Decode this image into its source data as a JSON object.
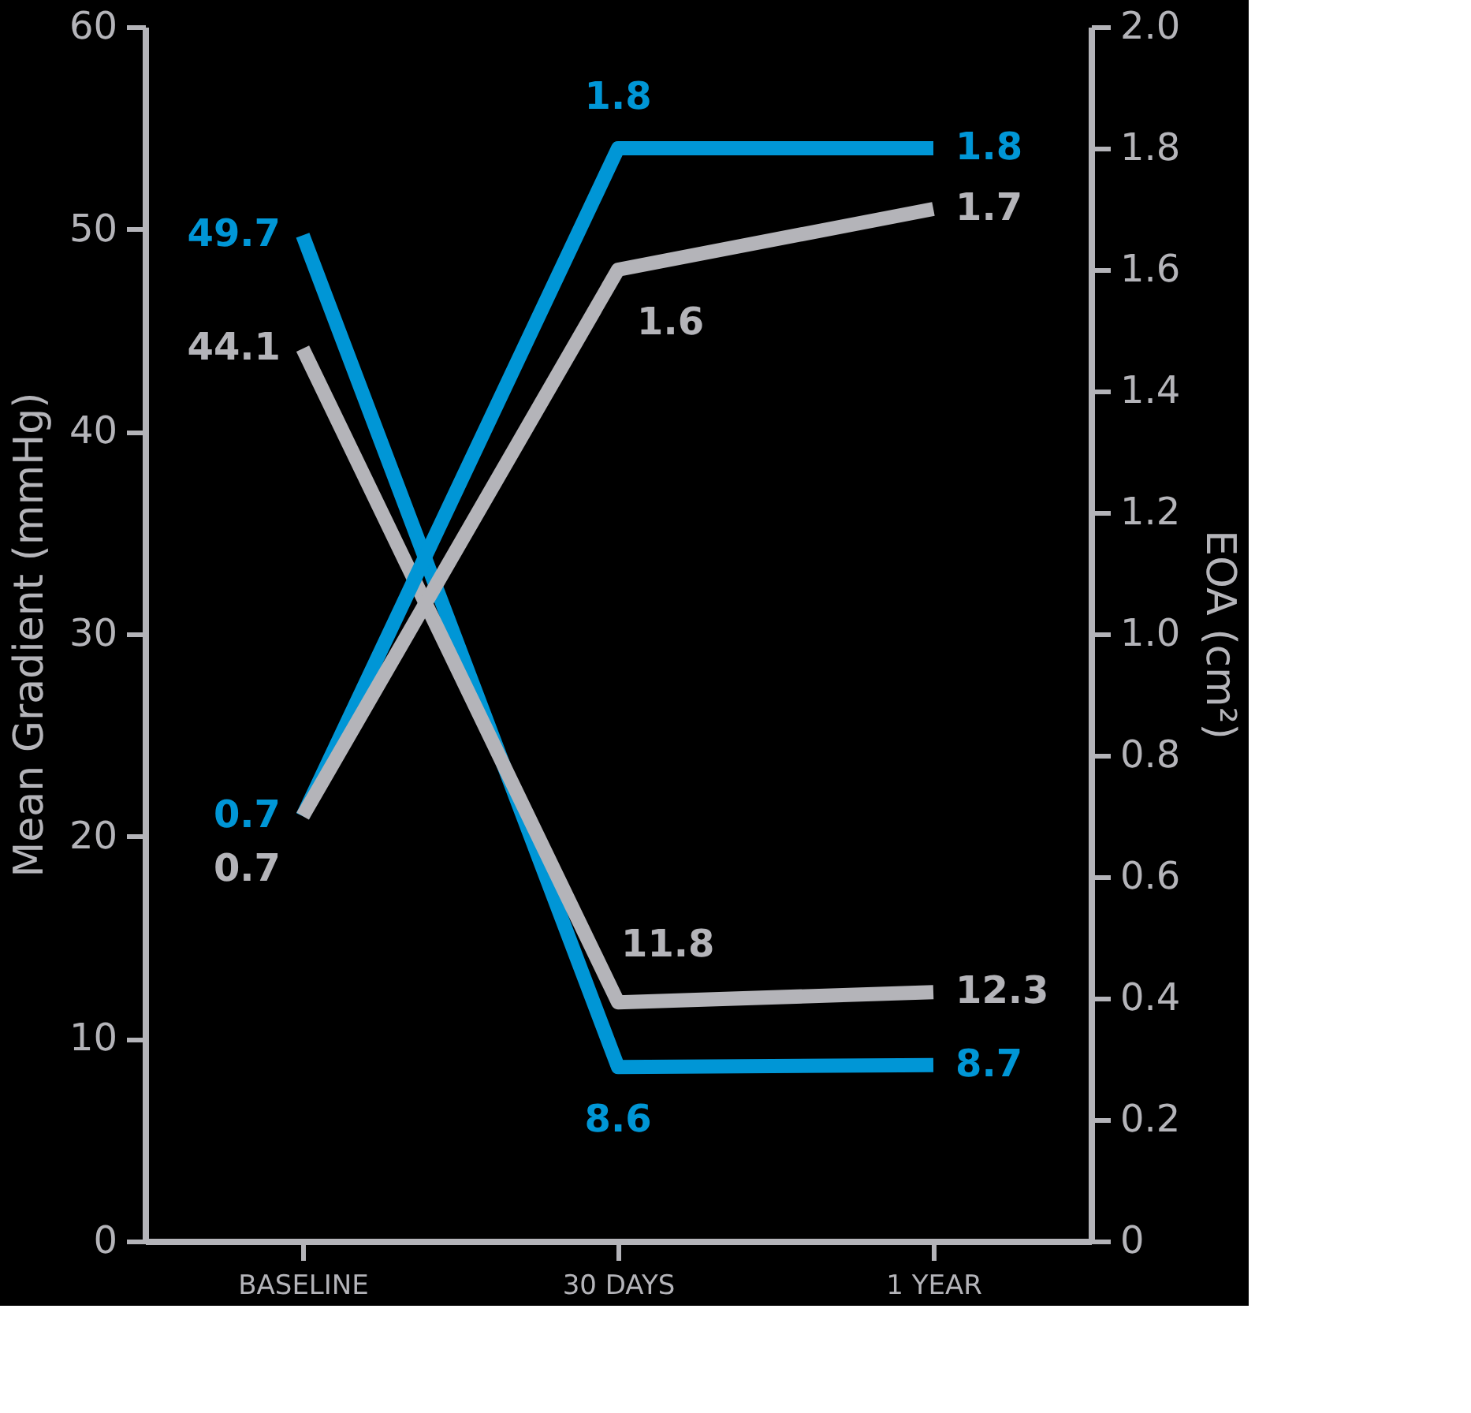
{
  "chart_data": {
    "type": "line",
    "categories": [
      "BASELINE",
      "30 DAYS",
      "1 YEAR"
    ],
    "series": [
      {
        "color": "#0096d6",
        "values": [
          49.7,
          8.6,
          8.7
        ]
      },
      {
        "color": "#b4b4b9",
        "values": [
          44.1,
          11.8,
          12.3
        ]
      },
      {
        "color": "#0096d6",
        "values": [
          0.7,
          1.8,
          1.8
        ],
        "axis": "y2"
      },
      {
        "color": "#b4b4b9",
        "values": [
          0.7,
          1.6,
          1.7
        ],
        "axis": "y2"
      }
    ],
    "ylabel": "Mean Gradient (mmHg)",
    "y2label": "EOA (cm²)",
    "ylim": [
      0,
      60
    ],
    "yticks": [
      0,
      10,
      20,
      30,
      40,
      50,
      60
    ],
    "y2lim": [
      0,
      2.0
    ],
    "y2ticks": [
      0,
      0.2,
      0.4,
      0.6,
      0.8,
      {
        "value": 1.0,
        "label": "1.0"
      },
      1.2,
      1.4,
      1.6,
      1.8,
      {
        "value": 2.0,
        "label": "2.0"
      }
    ],
    "data_labels": true,
    "grid": false,
    "marker": "none",
    "line_style": "solid"
  }
}
